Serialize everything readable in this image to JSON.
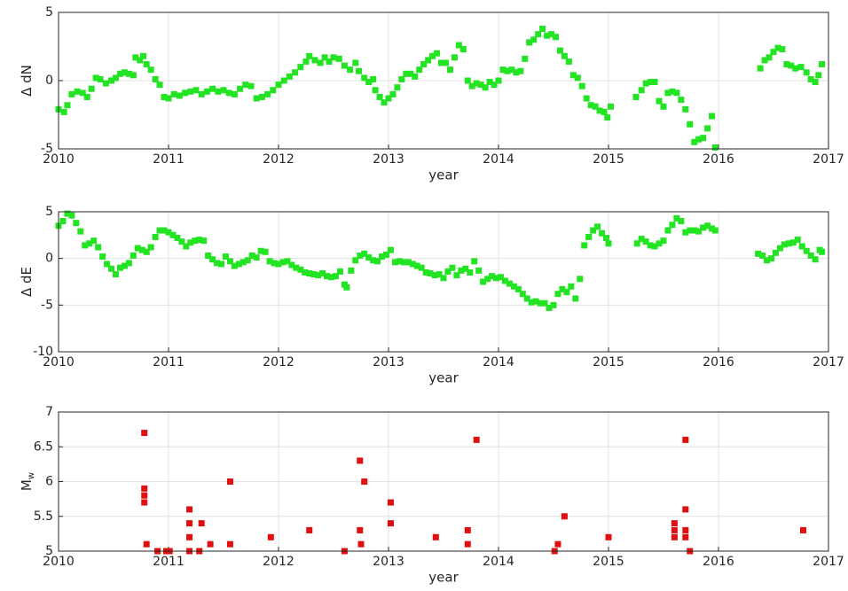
{
  "chart_data": [
    {
      "type": "scatter",
      "xlabel": "year",
      "ylabel": "Δ dN",
      "color": "#22e422",
      "grid": true,
      "xlim": [
        2010,
        2017
      ],
      "xticks": [
        2010,
        2011,
        2012,
        2013,
        2014,
        2015,
        2016,
        2017
      ],
      "ylim": [
        -5,
        5
      ],
      "yticks": [
        -5,
        0,
        5
      ],
      "x": [
        2010.0,
        2010.05,
        2010.08,
        2010.12,
        2010.17,
        2010.22,
        2010.26,
        2010.3,
        2010.34,
        2010.38,
        2010.43,
        2010.48,
        2010.52,
        2010.56,
        2010.6,
        2010.64,
        2010.68,
        2010.7,
        2010.74,
        2010.77,
        2010.8,
        2010.84,
        2010.88,
        2010.92,
        2010.96,
        2011.0,
        2011.05,
        2011.1,
        2011.15,
        2011.2,
        2011.25,
        2011.3,
        2011.35,
        2011.4,
        2011.45,
        2011.5,
        2011.55,
        2011.6,
        2011.65,
        2011.7,
        2011.75,
        2011.8,
        2011.85,
        2011.9,
        2011.95,
        2012.0,
        2012.05,
        2012.1,
        2012.15,
        2012.2,
        2012.25,
        2012.28,
        2012.33,
        2012.38,
        2012.42,
        2012.46,
        2012.5,
        2012.55,
        2012.6,
        2012.65,
        2012.7,
        2012.73,
        2012.78,
        2012.82,
        2012.86,
        2012.88,
        2012.92,
        2012.96,
        2013.0,
        2013.04,
        2013.08,
        2013.12,
        2013.16,
        2013.2,
        2013.24,
        2013.28,
        2013.32,
        2013.36,
        2013.4,
        2013.44,
        2013.48,
        2013.52,
        2013.56,
        2013.6,
        2013.64,
        2013.68,
        2013.72,
        2013.76,
        2013.8,
        2013.84,
        2013.88,
        2013.92,
        2013.96,
        2014.0,
        2014.04,
        2014.08,
        2014.12,
        2014.16,
        2014.2,
        2014.24,
        2014.28,
        2014.32,
        2014.36,
        2014.4,
        2014.44,
        2014.48,
        2014.52,
        2014.56,
        2014.6,
        2014.64,
        2014.68,
        2014.72,
        2014.76,
        2014.8,
        2014.84,
        2014.88,
        2014.92,
        2014.96,
        2014.99,
        2015.02,
        2015.25,
        2015.3,
        2015.34,
        2015.38,
        2015.42,
        2015.46,
        2015.5,
        2015.54,
        2015.58,
        2015.62,
        2015.66,
        2015.7,
        2015.74,
        2015.78,
        2015.82,
        2015.86,
        2015.9,
        2015.94,
        2015.97,
        2016.38,
        2016.42,
        2016.46,
        2016.5,
        2016.54,
        2016.58,
        2016.62,
        2016.66,
        2016.7,
        2016.75,
        2016.8,
        2016.84,
        2016.88,
        2016.91,
        2016.94
      ],
      "values": [
        -2.1,
        -2.3,
        -1.8,
        -1.0,
        -0.8,
        -0.9,
        -1.2,
        -0.6,
        0.2,
        0.1,
        -0.2,
        0.0,
        0.2,
        0.5,
        0.6,
        0.5,
        0.4,
        1.7,
        1.5,
        1.8,
        1.2,
        0.8,
        0.1,
        -0.3,
        -1.2,
        -1.3,
        -1.0,
        -1.1,
        -0.9,
        -0.8,
        -0.7,
        -1.0,
        -0.8,
        -0.6,
        -0.8,
        -0.7,
        -0.9,
        -1.0,
        -0.6,
        -0.3,
        -0.4,
        -1.3,
        -1.2,
        -1.0,
        -0.7,
        -0.3,
        0.0,
        0.3,
        0.6,
        1.0,
        1.4,
        1.8,
        1.5,
        1.3,
        1.7,
        1.4,
        1.7,
        1.6,
        1.1,
        0.8,
        1.3,
        0.7,
        0.2,
        -0.1,
        0.1,
        -0.7,
        -1.2,
        -1.6,
        -1.3,
        -1.0,
        -0.5,
        0.1,
        0.5,
        0.5,
        0.3,
        0.8,
        1.2,
        1.5,
        1.8,
        2.0,
        1.3,
        1.3,
        0.8,
        1.7,
        2.6,
        2.3,
        0.0,
        -0.4,
        -0.2,
        -0.3,
        -0.5,
        -0.1,
        -0.3,
        0.0,
        0.8,
        0.7,
        0.8,
        0.6,
        0.7,
        1.6,
        2.8,
        3.0,
        3.4,
        3.8,
        3.3,
        3.4,
        3.2,
        2.2,
        1.8,
        1.4,
        0.4,
        0.2,
        -0.4,
        -1.3,
        -1.8,
        -1.9,
        -2.2,
        -2.3,
        -2.7,
        -1.9,
        -1.2,
        -0.7,
        -0.2,
        -0.1,
        -0.1,
        -1.5,
        -1.9,
        -0.9,
        -0.8,
        -0.9,
        -1.4,
        -2.1,
        -3.2,
        -4.5,
        -4.3,
        -4.2,
        -3.5,
        -2.6,
        -4.9,
        0.9,
        1.5,
        1.7,
        2.1,
        2.4,
        2.3,
        1.2,
        1.1,
        0.9,
        1.0,
        0.6,
        0.1,
        -0.1,
        0.4,
        1.2
      ]
    },
    {
      "type": "scatter",
      "xlabel": "year",
      "ylabel": "Δ dE",
      "color": "#22e422",
      "grid": true,
      "xlim": [
        2010,
        2017
      ],
      "xticks": [
        2010,
        2011,
        2012,
        2013,
        2014,
        2015,
        2016,
        2017
      ],
      "ylim": [
        -10,
        5
      ],
      "yticks": [
        -10,
        -5,
        0,
        5
      ],
      "x": [
        2010.0,
        2010.04,
        2010.08,
        2010.12,
        2010.16,
        2010.2,
        2010.24,
        2010.28,
        2010.32,
        2010.36,
        2010.4,
        2010.44,
        2010.48,
        2010.52,
        2010.56,
        2010.6,
        2010.64,
        2010.68,
        2010.72,
        2010.76,
        2010.8,
        2010.84,
        2010.88,
        2010.92,
        2010.96,
        2011.0,
        2011.04,
        2011.08,
        2011.12,
        2011.16,
        2011.2,
        2011.24,
        2011.28,
        2011.32,
        2011.36,
        2011.4,
        2011.44,
        2011.48,
        2011.52,
        2011.56,
        2011.6,
        2011.64,
        2011.68,
        2011.72,
        2011.76,
        2011.8,
        2011.84,
        2011.88,
        2011.92,
        2011.96,
        2012.0,
        2012.04,
        2012.08,
        2012.12,
        2012.16,
        2012.2,
        2012.24,
        2012.28,
        2012.32,
        2012.36,
        2012.4,
        2012.44,
        2012.48,
        2012.52,
        2012.56,
        2012.6,
        2012.62,
        2012.66,
        2012.7,
        2012.74,
        2012.78,
        2012.82,
        2012.86,
        2012.9,
        2012.94,
        2012.98,
        2013.02,
        2013.06,
        2013.1,
        2013.14,
        2013.18,
        2013.22,
        2013.26,
        2013.3,
        2013.34,
        2013.38,
        2013.42,
        2013.46,
        2013.5,
        2013.54,
        2013.58,
        2013.62,
        2013.66,
        2013.7,
        2013.74,
        2013.78,
        2013.82,
        2013.86,
        2013.9,
        2013.94,
        2013.98,
        2014.02,
        2014.06,
        2014.1,
        2014.14,
        2014.18,
        2014.22,
        2014.26,
        2014.3,
        2014.34,
        2014.38,
        2014.42,
        2014.46,
        2014.5,
        2014.54,
        2014.58,
        2014.62,
        2014.66,
        2014.7,
        2014.74,
        2014.78,
        2014.82,
        2014.86,
        2014.9,
        2014.94,
        2014.98,
        2015.0,
        2015.26,
        2015.3,
        2015.34,
        2015.38,
        2015.42,
        2015.46,
        2015.5,
        2015.54,
        2015.58,
        2015.62,
        2015.66,
        2015.7,
        2015.74,
        2015.78,
        2015.82,
        2015.86,
        2015.9,
        2015.94,
        2015.97,
        2016.36,
        2016.4,
        2016.44,
        2016.48,
        2016.52,
        2016.56,
        2016.6,
        2016.64,
        2016.68,
        2016.72,
        2016.76,
        2016.8,
        2016.84,
        2016.88,
        2016.92,
        2016.94
      ],
      "values": [
        3.5,
        4.0,
        4.8,
        4.6,
        3.8,
        2.9,
        1.4,
        1.6,
        1.9,
        1.2,
        0.2,
        -0.6,
        -1.1,
        -1.7,
        -1.0,
        -0.8,
        -0.5,
        0.3,
        1.1,
        0.9,
        0.7,
        1.2,
        2.3,
        3.0,
        3.0,
        2.8,
        2.5,
        2.2,
        1.8,
        1.3,
        1.7,
        1.9,
        2.0,
        1.9,
        0.3,
        -0.1,
        -0.5,
        -0.6,
        0.2,
        -0.3,
        -0.8,
        -0.6,
        -0.4,
        -0.2,
        0.3,
        0.1,
        0.8,
        0.7,
        -0.3,
        -0.5,
        -0.6,
        -0.4,
        -0.3,
        -0.7,
        -1.0,
        -1.2,
        -1.5,
        -1.6,
        -1.7,
        -1.8,
        -1.6,
        -1.9,
        -2.0,
        -1.9,
        -1.4,
        -2.8,
        -3.1,
        -1.3,
        -0.2,
        0.3,
        0.5,
        0.1,
        -0.2,
        -0.3,
        0.2,
        0.4,
        0.9,
        -0.4,
        -0.3,
        -0.4,
        -0.4,
        -0.6,
        -0.8,
        -1.0,
        -1.5,
        -1.6,
        -1.8,
        -1.7,
        -2.1,
        -1.4,
        -1.0,
        -1.8,
        -1.3,
        -1.1,
        -1.5,
        -0.3,
        -1.3,
        -2.5,
        -2.2,
        -1.9,
        -2.1,
        -2.0,
        -2.4,
        -2.7,
        -3.0,
        -3.3,
        -3.8,
        -4.3,
        -4.7,
        -4.6,
        -4.8,
        -4.8,
        -5.3,
        -5.0,
        -3.8,
        -3.3,
        -3.6,
        -3.0,
        -4.3,
        -2.2,
        1.4,
        2.3,
        3.0,
        3.4,
        2.7,
        2.2,
        1.6,
        1.6,
        2.1,
        1.8,
        1.4,
        1.3,
        1.6,
        1.9,
        3.0,
        3.6,
        4.3,
        4.0,
        2.8,
        3.0,
        3.0,
        2.9,
        3.3,
        3.5,
        3.2,
        3.0,
        0.5,
        0.3,
        -0.2,
        0.0,
        0.6,
        1.1,
        1.5,
        1.6,
        1.7,
        2.0,
        1.3,
        0.8,
        0.3,
        -0.1,
        0.9,
        0.7
      ]
    },
    {
      "type": "scatter",
      "xlabel": "year",
      "ylabel": "M",
      "ylabel_subscript": "w",
      "color": "#e01010",
      "grid": true,
      "xlim": [
        2010,
        2017
      ],
      "xticks": [
        2010,
        2011,
        2012,
        2013,
        2014,
        2015,
        2016,
        2017
      ],
      "ylim": [
        5,
        7
      ],
      "yticks": [
        5,
        5.5,
        6,
        6.5,
        7
      ],
      "x": [
        2010.78,
        2010.78,
        2010.78,
        2010.78,
        2010.8,
        2010.9,
        2010.98,
        2011.01,
        2011.19,
        2011.19,
        2011.19,
        2011.19,
        2011.28,
        2011.3,
        2011.38,
        2011.56,
        2011.56,
        2011.93,
        2012.28,
        2012.6,
        2012.74,
        2012.74,
        2012.75,
        2012.78,
        2013.02,
        2013.02,
        2013.43,
        2013.72,
        2013.72,
        2013.8,
        2014.51,
        2014.54,
        2014.6,
        2015.0,
        2015.6,
        2015.6,
        2015.6,
        2015.7,
        2015.7,
        2015.7,
        2015.7,
        2015.74,
        2016.77
      ],
      "values": [
        6.7,
        5.9,
        5.8,
        5.7,
        5.1,
        5.0,
        5.0,
        5.0,
        5.6,
        5.4,
        5.2,
        5.0,
        5.0,
        5.4,
        5.1,
        6.0,
        5.1,
        5.2,
        5.3,
        5.0,
        6.3,
        5.3,
        5.1,
        6.0,
        5.7,
        5.4,
        5.2,
        5.3,
        5.1,
        6.6,
        5.0,
        5.1,
        5.5,
        5.2,
        5.4,
        5.3,
        5.2,
        6.6,
        5.6,
        5.3,
        5.2,
        5.0,
        5.3
      ]
    }
  ]
}
